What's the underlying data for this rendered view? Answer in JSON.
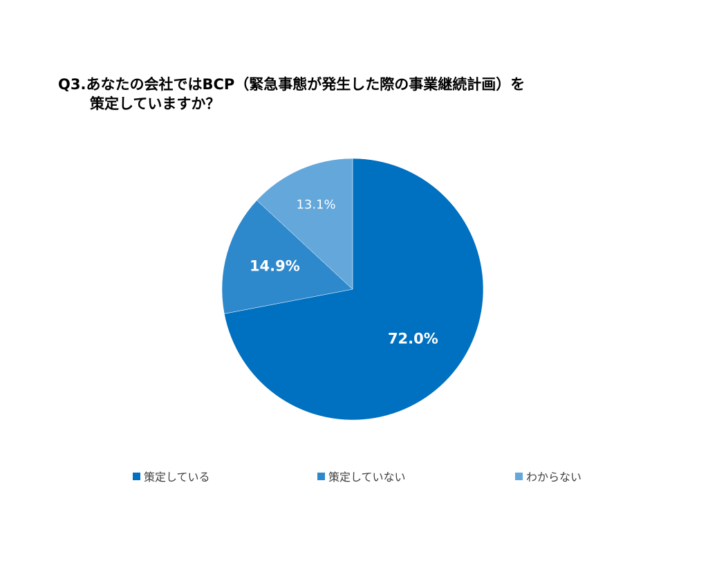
{
  "chart_data": {
    "type": "pie",
    "title": "Q3.あなたの会社ではBCP（緊急事態が発生した際の事業継続計画）を策定していますか？",
    "title_line1": "Q3.あなたの会社ではBCP（緊急事態が発生した際の事業継続計画）を",
    "title_line2": "策定していますか？",
    "slices": [
      {
        "label": "策定している",
        "value": 72.0,
        "display": "72.0%",
        "color": "#0070c0",
        "label_color": "#ffffff",
        "label_bold": true
      },
      {
        "label": "策定していない",
        "value": 14.9,
        "display": "14.9%",
        "color": "#2e88cc",
        "label_color": "#ffffff",
        "label_bold": true
      },
      {
        "label": "わからない",
        "value": 13.1,
        "display": "13.1%",
        "color": "#64a7db",
        "label_color": "#ffffff",
        "label_bold": false
      }
    ],
    "legend_position": "bottom"
  }
}
